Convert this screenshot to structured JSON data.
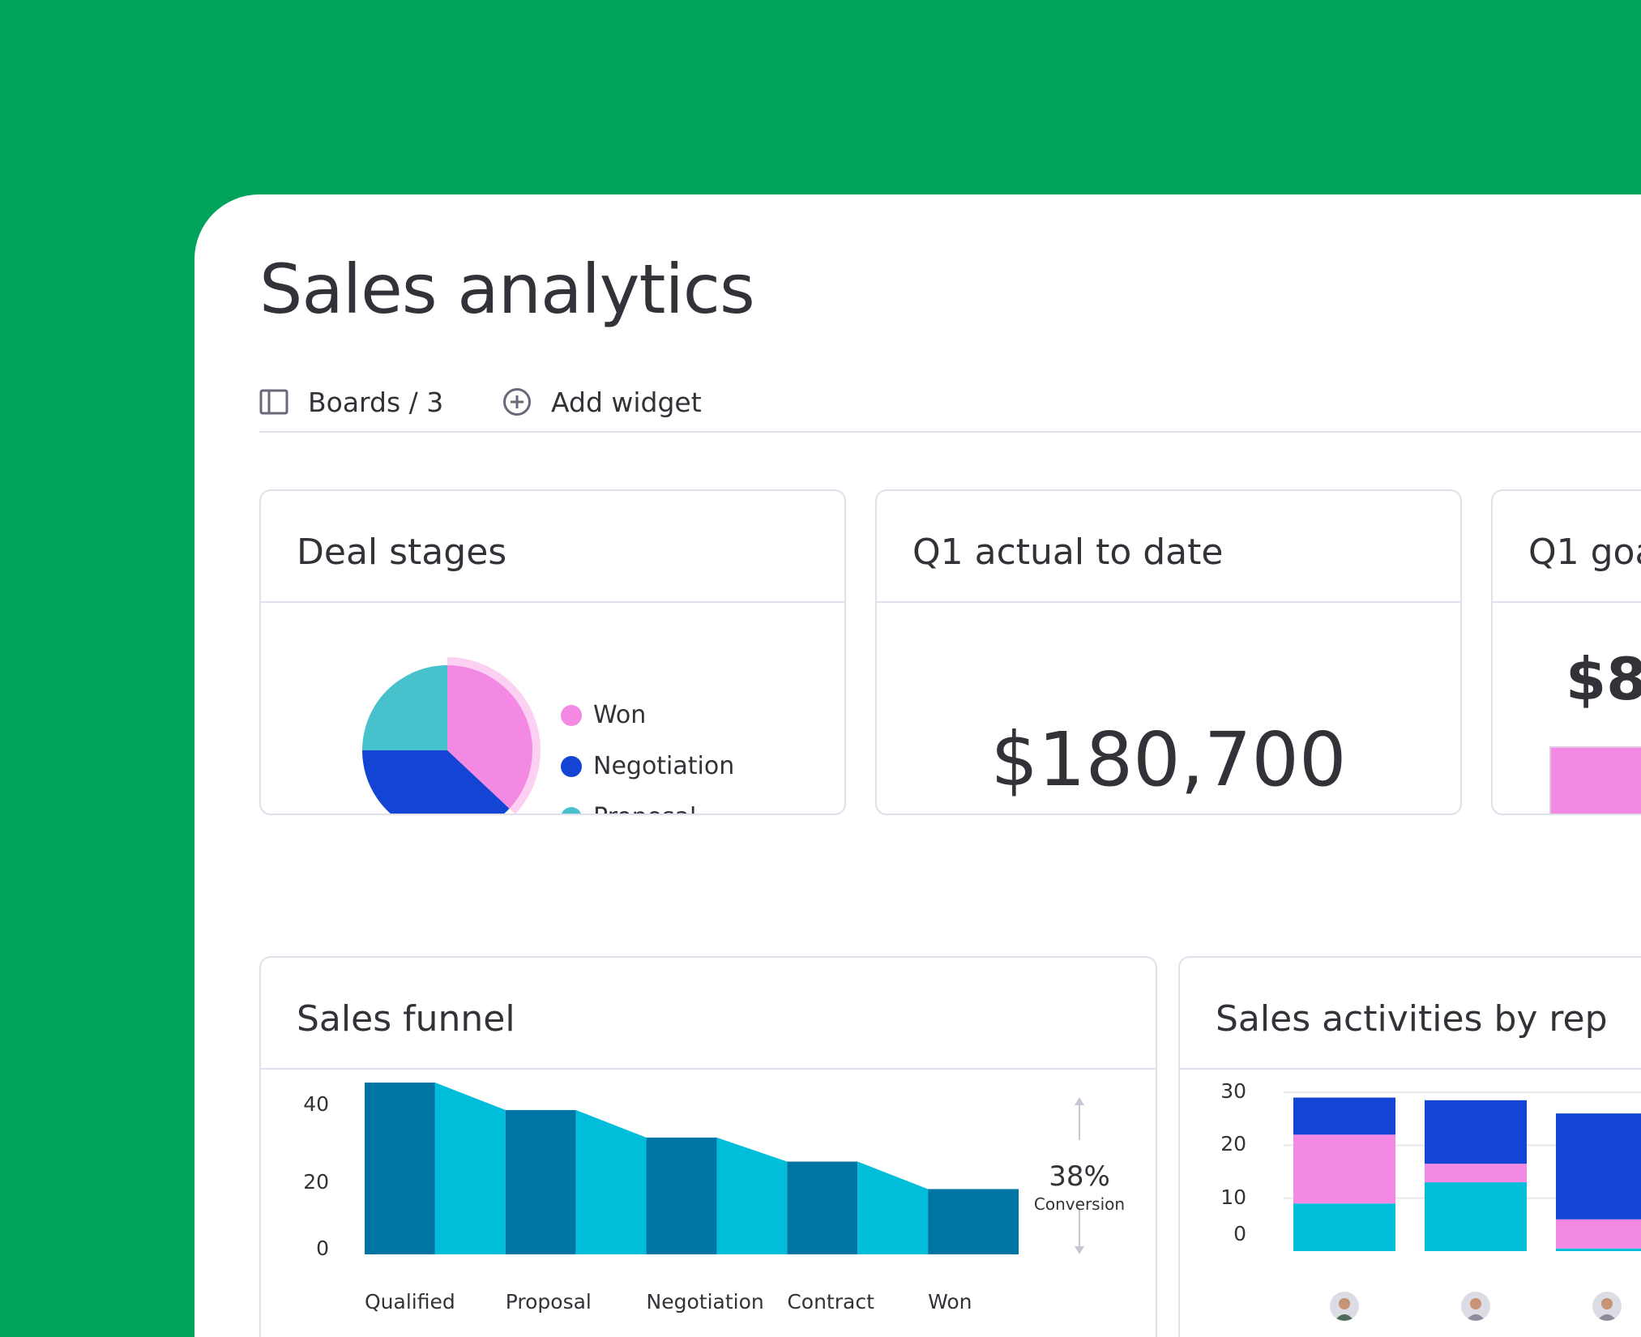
{
  "page": {
    "title": "Sales analytics"
  },
  "toolbar": {
    "boards_label": "Boards / 3",
    "boards_icon": "board-icon",
    "add_widget_label": "Add widget",
    "add_widget_icon": "plus-circle-icon"
  },
  "widgets": {
    "deal_stages": {
      "title": "Deal stages",
      "legend": [
        {
          "label": "Won",
          "color": "#f389e3"
        },
        {
          "label": "Negotiation",
          "color": "#1444d4"
        },
        {
          "label": "Proposal",
          "color": "#47c1cc"
        }
      ]
    },
    "q1_actual": {
      "title": "Q1 actual to date",
      "value": "$180,700"
    },
    "q1_goal": {
      "title": "Q1 goa",
      "value": "$8"
    },
    "sales_funnel": {
      "title": "Sales funnel",
      "conversion_value": "38%",
      "conversion_label": "Conversion"
    },
    "sales_activities": {
      "title": "Sales activities by rep"
    }
  },
  "colors": {
    "brand_green": "#00a35c",
    "won": "#f389e3",
    "negotiation": "#1444d4",
    "proposal": "#47c1cc",
    "funnel_dark": "#0074a3",
    "funnel_light": "#00bed9"
  },
  "chart_data": [
    {
      "type": "pie",
      "categories": [
        "Won",
        "Negotiation",
        "Proposal"
      ],
      "values": [
        37,
        38,
        25
      ],
      "colors": [
        "#f389e3",
        "#1444d4",
        "#47c1cc"
      ],
      "highlighted": "Won"
    },
    {
      "type": "bar",
      "categories": [
        "Qualified",
        "Proposal",
        "Negotiation",
        "Contract",
        "Won"
      ],
      "values": [
        50,
        42,
        34,
        27,
        19
      ],
      "yticks": [
        0,
        20,
        40
      ],
      "ylim": [
        0,
        50
      ]
    },
    {
      "type": "bar",
      "stacked": true,
      "yticks": [
        0,
        10,
        20,
        30
      ],
      "ylim": [
        0,
        30
      ],
      "reps": [
        "rep-1",
        "rep-2",
        "rep-3"
      ],
      "series": [
        {
          "color": "#00bed9",
          "values": [
            9,
            13,
            0.5
          ]
        },
        {
          "color": "#f389e3",
          "values": [
            13,
            3.5,
            5.5
          ]
        },
        {
          "color": "#1444d4",
          "values": [
            7,
            12,
            20
          ]
        }
      ]
    }
  ]
}
